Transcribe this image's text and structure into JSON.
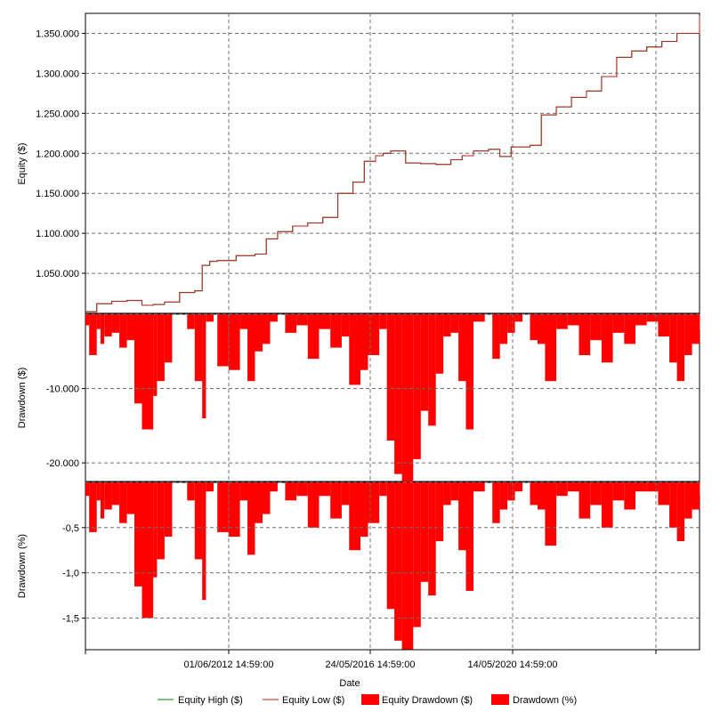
{
  "chart_data": {
    "type": "area",
    "xlabel": "Date",
    "x_ticks": [
      "01/06/2012 14:59:00",
      "24/05/2016 14:59:00",
      "14/05/2020 14:59:00"
    ],
    "x_range_years": [
      2008.5,
      2024.8
    ],
    "legend": [
      "Equity High ($)",
      "Equity Low ($)",
      "Equity Drawdown ($)",
      "Drawdown (%)"
    ],
    "colors": {
      "equity_high": "#008000",
      "equity_low": "#b22222",
      "drawdown_fill": "#ff0000",
      "grid": "#808080"
    },
    "grid": true,
    "panels": [
      {
        "id": "equity",
        "ylabel": "Equity ($)",
        "ylim": [
          1000000,
          1375000
        ],
        "yticks": [
          1050000,
          1100000,
          1150000,
          1200000,
          1250000,
          1300000,
          1350000
        ],
        "ytick_labels": [
          "1.050.000",
          "1.100.000",
          "1.150.000",
          "1.200.000",
          "1.250.000",
          "1.300.000",
          "1.350.000"
        ],
        "series": [
          {
            "name": "Equity High ($)",
            "color": "#008000",
            "x": [
              2008.5,
              2008.8,
              2009.2,
              2009.6,
              2010.0,
              2010.3,
              2010.6,
              2011.0,
              2011.4,
              2011.6,
              2011.8,
              2012.0,
              2012.5,
              2013.0,
              2013.3,
              2013.6,
              2014.0,
              2014.4,
              2014.8,
              2015.2,
              2015.6,
              2015.9,
              2016.2,
              2016.4,
              2016.6,
              2017.0,
              2017.4,
              2017.8,
              2018.2,
              2018.5,
              2018.8,
              2019.2,
              2019.5,
              2019.8,
              2020.3,
              2020.6,
              2021.0,
              2021.4,
              2021.8,
              2022.2,
              2022.6,
              2023.0,
              2023.4,
              2023.8,
              2024.2,
              2024.5,
              2024.8
            ],
            "y": [
              1002000,
              1012000,
              1015000,
              1016000,
              1010000,
              1011000,
              1014000,
              1026000,
              1028000,
              1060000,
              1065000,
              1066000,
              1072000,
              1074000,
              1093000,
              1102000,
              1109000,
              1113000,
              1120000,
              1150000,
              1164000,
              1190000,
              1197000,
              1200000,
              1203000,
              1188000,
              1187000,
              1186000,
              1192000,
              1197000,
              1203000,
              1205000,
              1196000,
              1208000,
              1210000,
              1248000,
              1258000,
              1270000,
              1278000,
              1296000,
              1320000,
              1328000,
              1333000,
              1340000,
              1350000,
              1350000,
              1372000
            ]
          },
          {
            "name": "Equity Low ($)",
            "color": "#b22222",
            "x": [
              2008.5,
              2008.8,
              2009.2,
              2009.6,
              2010.0,
              2010.3,
              2010.6,
              2011.0,
              2011.4,
              2011.6,
              2011.8,
              2012.0,
              2012.5,
              2013.0,
              2013.3,
              2013.6,
              2014.0,
              2014.4,
              2014.8,
              2015.2,
              2015.6,
              2015.9,
              2016.2,
              2016.4,
              2016.6,
              2017.0,
              2017.4,
              2017.8,
              2018.2,
              2018.5,
              2018.8,
              2019.2,
              2019.5,
              2019.8,
              2020.3,
              2020.6,
              2021.0,
              2021.4,
              2021.8,
              2022.2,
              2022.6,
              2023.0,
              2023.4,
              2023.8,
              2024.2,
              2024.5,
              2024.8
            ],
            "y": [
              1002000,
              1012000,
              1015000,
              1016000,
              1010000,
              1011000,
              1014000,
              1026000,
              1028000,
              1060000,
              1065000,
              1066000,
              1072000,
              1074000,
              1093000,
              1102000,
              1109000,
              1113000,
              1120000,
              1150000,
              1164000,
              1190000,
              1197000,
              1200000,
              1203000,
              1188000,
              1187000,
              1186000,
              1192000,
              1197000,
              1203000,
              1205000,
              1196000,
              1208000,
              1210000,
              1248000,
              1258000,
              1270000,
              1278000,
              1296000,
              1320000,
              1328000,
              1333000,
              1340000,
              1350000,
              1350000,
              1372000
            ]
          }
        ]
      },
      {
        "id": "drawdown_usd",
        "ylabel": "Drawdown ($)",
        "ylim": [
          -22500,
          0
        ],
        "yticks": [
          -10000,
          -20000
        ],
        "ytick_labels": [
          "-10.000",
          "-20.000"
        ],
        "series": [
          {
            "name": "Equity Drawdown ($)",
            "color": "#ff0000",
            "x": [
              2008.5,
              2008.6,
              2008.8,
              2008.9,
              2009.0,
              2009.2,
              2009.4,
              2009.6,
              2009.8,
              2010.0,
              2010.3,
              2010.4,
              2010.6,
              2010.8,
              2011.0,
              2011.2,
              2011.4,
              2011.6,
              2011.7,
              2011.9,
              2012.0,
              2012.3,
              2012.6,
              2012.8,
              2013.0,
              2013.2,
              2013.4,
              2013.6,
              2013.8,
              2014.1,
              2014.4,
              2014.7,
              2015.0,
              2015.3,
              2015.5,
              2015.8,
              2016.0,
              2016.3,
              2016.5,
              2016.7,
              2016.9,
              2017.2,
              2017.4,
              2017.6,
              2017.8,
              2018.0,
              2018.2,
              2018.4,
              2018.6,
              2018.8,
              2019.1,
              2019.3,
              2019.5,
              2019.7,
              2019.9,
              2020.1,
              2020.3,
              2020.5,
              2020.7,
              2021.0,
              2021.3,
              2021.6,
              2021.9,
              2022.2,
              2022.5,
              2022.8,
              2023.1,
              2023.4,
              2023.7,
              2024.0,
              2024.2,
              2024.4,
              2024.6,
              2024.8
            ],
            "y": [
              -1500,
              -5500,
              -2000,
              -4000,
              -3000,
              -2500,
              -4500,
              -3500,
              -12000,
              -15500,
              -11000,
              -9000,
              -6500,
              0,
              0,
              -2000,
              -9000,
              -14000,
              -1000,
              0,
              -7000,
              -7500,
              -2000,
              -9000,
              -5000,
              -4000,
              -1000,
              0,
              -2500,
              -1500,
              -6000,
              -2000,
              -4500,
              -3000,
              -9500,
              -7500,
              -5500,
              -2000,
              -17000,
              -21500,
              -23000,
              -19500,
              -13000,
              -15000,
              -8000,
              -3000,
              -2500,
              -9000,
              -15500,
              -1000,
              0,
              -6000,
              -4000,
              -2500,
              -1000,
              0,
              -3500,
              -4000,
              -9000,
              -2000,
              -1500,
              -5500,
              -3500,
              -6500,
              -2500,
              -4000,
              -1500,
              -1000,
              -3000,
              -6500,
              -9000,
              -5500,
              -4000,
              -2000
            ]
          }
        ]
      },
      {
        "id": "drawdown_pct",
        "ylabel": "Drawdown (%)",
        "ylim": [
          -1.85,
          0
        ],
        "yticks": [
          -0.5,
          -1.0,
          -1.5
        ],
        "ytick_labels": [
          "-0,5",
          "-1,0",
          "-1,5"
        ],
        "series": [
          {
            "name": "Drawdown (%)",
            "color": "#ff0000",
            "x": [
              2008.5,
              2008.6,
              2008.8,
              2008.9,
              2009.0,
              2009.2,
              2009.4,
              2009.6,
              2009.8,
              2010.0,
              2010.3,
              2010.4,
              2010.6,
              2010.8,
              2011.0,
              2011.2,
              2011.4,
              2011.6,
              2011.7,
              2011.9,
              2012.0,
              2012.3,
              2012.6,
              2012.8,
              2013.0,
              2013.2,
              2013.4,
              2013.6,
              2013.8,
              2014.1,
              2014.4,
              2014.7,
              2015.0,
              2015.3,
              2015.5,
              2015.8,
              2016.0,
              2016.3,
              2016.5,
              2016.7,
              2016.9,
              2017.2,
              2017.4,
              2017.6,
              2017.8,
              2018.0,
              2018.2,
              2018.4,
              2018.6,
              2018.8,
              2019.1,
              2019.3,
              2019.5,
              2019.7,
              2019.9,
              2020.1,
              2020.3,
              2020.5,
              2020.7,
              2021.0,
              2021.3,
              2021.6,
              2021.9,
              2022.2,
              2022.5,
              2022.8,
              2023.1,
              2023.4,
              2023.7,
              2024.0,
              2024.2,
              2024.4,
              2024.6,
              2024.8
            ],
            "y": [
              -0.15,
              -0.55,
              -0.2,
              -0.4,
              -0.3,
              -0.25,
              -0.45,
              -0.35,
              -1.15,
              -1.5,
              -1.05,
              -0.85,
              -0.6,
              0,
              0,
              -0.2,
              -0.85,
              -1.3,
              -0.1,
              0,
              -0.55,
              -0.6,
              -0.2,
              -0.8,
              -0.45,
              -0.35,
              -0.1,
              0,
              -0.2,
              -0.15,
              -0.5,
              -0.15,
              -0.4,
              -0.25,
              -0.75,
              -0.6,
              -0.45,
              -0.15,
              -1.4,
              -1.75,
              -1.85,
              -1.6,
              -1.1,
              -1.25,
              -0.65,
              -0.25,
              -0.2,
              -0.75,
              -1.2,
              -0.1,
              0,
              -0.45,
              -0.3,
              -0.2,
              -0.1,
              0,
              -0.25,
              -0.3,
              -0.7,
              -0.15,
              -0.1,
              -0.4,
              -0.25,
              -0.5,
              -0.2,
              -0.3,
              -0.1,
              -0.1,
              -0.25,
              -0.5,
              -0.65,
              -0.4,
              -0.3,
              -0.15
            ]
          }
        ]
      }
    ]
  }
}
